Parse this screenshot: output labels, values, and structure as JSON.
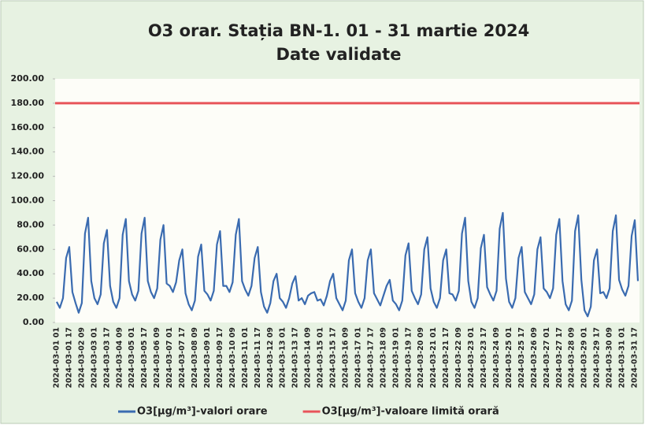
{
  "chart_data": {
    "type": "line",
    "title": "O3 orar. Stația BN-1. 01 - 31 martie 2024",
    "subtitle": "Date validate",
    "categories": [
      "2024-03-01 01",
      null,
      null,
      null,
      "2024-03-01 17",
      null,
      null,
      null,
      "2024-03-02 09",
      null,
      null,
      null,
      "2024-03-03 01",
      null,
      null,
      null,
      "2024-03-03 17",
      null,
      null,
      null,
      "2024-03-04 09",
      null,
      null,
      null,
      "2024-03-05 01",
      null,
      null,
      null,
      "2024-03-05 17",
      null,
      null,
      null,
      "2024-03-06 09",
      null,
      null,
      null,
      "2024-03-07 01",
      null,
      null,
      null,
      "2024-03-07 17",
      null,
      null,
      null,
      "2024-03-08 09",
      null,
      null,
      null,
      "2024-03-09 01",
      null,
      null,
      null,
      "2024-03-09 17",
      null,
      null,
      null,
      "2024-03-10 09",
      null,
      null,
      null,
      "2024-03-11 01",
      null,
      null,
      null,
      "2024-03-11 17",
      null,
      null,
      null,
      "2024-03-12 09",
      null,
      null,
      null,
      "2024-03-13 01",
      null,
      null,
      null,
      "2024-03-13 17",
      null,
      null,
      null,
      "2024-03-14 09",
      null,
      null,
      null,
      "2024-03-15 01",
      null,
      null,
      null,
      "2024-03-15 17",
      null,
      null,
      null,
      "2024-03-16 09",
      null,
      null,
      null,
      "2024-03-17 01",
      null,
      null,
      null,
      "2024-03-17 17",
      null,
      null,
      null,
      "2024-03-18 09",
      null,
      null,
      null,
      "2024-03-19 01",
      null,
      null,
      null,
      "2024-03-19 17",
      null,
      null,
      null,
      "2024-03-20 09",
      null,
      null,
      null,
      "2024-03-21 01",
      null,
      null,
      null,
      "2024-03-21 17",
      null,
      null,
      null,
      "2024-03-22 09",
      null,
      null,
      null,
      "2024-03-23 01",
      null,
      null,
      null,
      "2024-03-23 17",
      null,
      null,
      null,
      "2024-03-24 09",
      null,
      null,
      null,
      "2024-03-25 01",
      null,
      null,
      null,
      "2024-03-25 17",
      null,
      null,
      null,
      "2024-03-26 09",
      null,
      null,
      null,
      "2024-03-27 01",
      null,
      null,
      null,
      "2024-03-27 17",
      null,
      null,
      null,
      "2024-03-28 09",
      null,
      null,
      null,
      "2024-03-29 01",
      null,
      null,
      null,
      "2024-03-29 17",
      null,
      null,
      null,
      "2024-03-30 09",
      null,
      null,
      null,
      "2024-03-31 01",
      null,
      null,
      null,
      "2024-03-31 17",
      null
    ],
    "series": [
      {
        "name": "O3[µg/m³]-valori orare",
        "color": "#3a6bb0",
        "values": [
          17,
          12,
          20,
          53,
          62,
          25,
          16,
          8,
          16,
          73,
          86,
          34,
          20,
          15,
          23,
          65,
          76,
          30,
          17,
          12,
          20,
          72,
          85,
          34,
          23,
          18,
          26,
          73,
          86,
          34,
          25,
          20,
          28,
          68,
          80,
          32,
          30,
          25,
          33,
          51,
          60,
          24,
          15,
          10,
          18,
          54,
          64,
          26,
          23,
          18,
          26,
          64,
          75,
          30,
          30,
          25,
          33,
          72,
          85,
          34,
          27,
          22,
          30,
          53,
          62,
          25,
          13,
          8,
          16,
          34,
          40,
          20,
          17,
          12,
          20,
          32,
          38,
          18,
          20,
          15,
          22,
          24,
          25,
          18,
          19,
          14,
          22,
          34,
          40,
          20,
          15,
          10,
          18,
          51,
          60,
          24,
          17,
          12,
          20,
          51,
          60,
          24,
          19,
          14,
          22,
          30,
          35,
          18,
          15,
          10,
          18,
          55,
          65,
          26,
          20,
          15,
          23,
          60,
          70,
          28,
          17,
          12,
          20,
          51,
          60,
          24,
          23,
          18,
          26,
          73,
          86,
          34,
          17,
          12,
          20,
          61,
          72,
          29,
          23,
          18,
          26,
          77,
          90,
          36,
          17,
          12,
          20,
          53,
          62,
          25,
          20,
          15,
          23,
          60,
          70,
          28,
          25,
          20,
          28,
          72,
          85,
          34,
          15,
          10,
          18,
          75,
          88,
          35,
          10,
          5,
          13,
          51,
          60,
          24,
          25,
          20,
          28,
          75,
          88,
          35,
          27,
          22,
          30,
          71,
          84,
          34
        ]
      }
    ],
    "threshold": {
      "name": "O3[µg/m³]-valoare limită orară",
      "color": "#e8545a",
      "value": 180
    },
    "ylim": [
      0,
      200
    ],
    "yticks": [
      {
        "value": 0,
        "label": "0.00"
      },
      {
        "value": 20,
        "label": "20.00"
      },
      {
        "value": 40,
        "label": "40.00"
      },
      {
        "value": 60,
        "label": "60.00"
      },
      {
        "value": 80,
        "label": "80.00"
      },
      {
        "value": 100,
        "label": "100.00"
      },
      {
        "value": 120,
        "label": "120.00"
      },
      {
        "value": 140,
        "label": "140.00"
      },
      {
        "value": 160,
        "label": "160.00"
      },
      {
        "value": 180,
        "label": "180.00"
      },
      {
        "value": 200,
        "label": "200.00"
      }
    ],
    "grid": false
  }
}
